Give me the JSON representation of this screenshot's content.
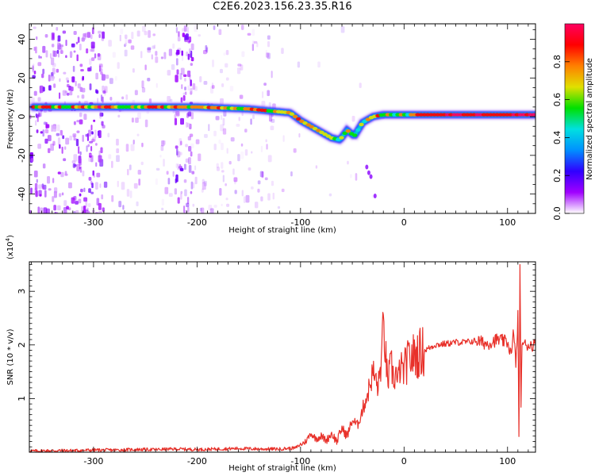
{
  "title": "C2E6.2023.156.23.35.R16",
  "chart_data": [
    {
      "type": "heatmap",
      "xlabel": "Height of straight line (km)",
      "ylabel": "Frequency (Hz)",
      "xlim": [
        -362,
        127
      ],
      "ylim": [
        -50,
        48
      ],
      "x_ticks": [
        -300,
        -200,
        -100,
        0,
        100
      ],
      "x_tick_labels": [
        "-300",
        "-200",
        "-100",
        "0",
        "100"
      ],
      "y_ticks": [
        -40,
        -20,
        0,
        20,
        40
      ],
      "y_tick_labels": [
        "-40",
        "-20",
        "0",
        "20",
        "40"
      ],
      "colorbar": {
        "label": "Normalized spectral amplitude",
        "range": [
          0.0,
          1.0
        ],
        "ticks": [
          0.0,
          0.2,
          0.4,
          0.6,
          0.8
        ],
        "tick_labels": [
          "0.0",
          "0.2",
          "0.4",
          "0.6",
          "0.8"
        ],
        "colormap": [
          "#ffffff",
          "#a000ff",
          "#3000ff",
          "#0090ff",
          "#00e0e0",
          "#00e000",
          "#e0e000",
          "#ff8000",
          "#ff0000",
          "#ff0060"
        ]
      },
      "ridge": {
        "x": [
          -358,
          -330,
          -300,
          -250,
          -200,
          -150,
          -130,
          -110,
          -100,
          -90,
          -80,
          -70,
          -62,
          -55,
          -48,
          -40,
          -30,
          -20,
          0,
          20,
          50,
          80,
          100,
          110,
          127
        ],
        "frequency": [
          5,
          5,
          5,
          5,
          5,
          4,
          3,
          2,
          -2,
          -5,
          -8,
          -11,
          -12,
          -7,
          -10,
          -3,
          0,
          1,
          1,
          1,
          1,
          1,
          1,
          1,
          1
        ]
      },
      "background_noise_x_ranges": [
        [
          -362,
          -290
        ],
        [
          -222,
          -205
        ]
      ],
      "grid": false
    },
    {
      "type": "line",
      "xlabel": "Height of straight line (km)",
      "ylabel": "SNR (10 * v/v)",
      "y_scale_label": "(x10^4)",
      "xlim": [
        -362,
        127
      ],
      "ylim": [
        0,
        3.55
      ],
      "x_ticks": [
        -300,
        -200,
        -100,
        0,
        100
      ],
      "x_tick_labels": [
        "-300",
        "-200",
        "-100",
        "0",
        "100"
      ],
      "y_ticks": [
        1,
        2,
        3
      ],
      "y_tick_labels": [
        "1",
        "2",
        "3"
      ],
      "series": [
        {
          "color": "#e8312a",
          "x": [
            -362,
            -340,
            -320,
            -300,
            -280,
            -260,
            -240,
            -220,
            -200,
            -180,
            -160,
            -140,
            -120,
            -105,
            -95,
            -90,
            -85,
            -80,
            -75,
            -70,
            -65,
            -60,
            -55,
            -50,
            -45,
            -40,
            -35,
            -30,
            -25,
            -22,
            -20,
            -18,
            -16,
            -14,
            -12,
            -10,
            -8,
            -6,
            -4,
            -2,
            0,
            5,
            10,
            15,
            20,
            25,
            30,
            40,
            50,
            60,
            70,
            80,
            90,
            100,
            104,
            106,
            108,
            110,
            111,
            112,
            113,
            114,
            116,
            120,
            127
          ],
          "y": [
            0.02,
            0.03,
            0.03,
            0.04,
            0.04,
            0.05,
            0.05,
            0.06,
            0.05,
            0.06,
            0.07,
            0.06,
            0.06,
            0.08,
            0.2,
            0.35,
            0.25,
            0.3,
            0.22,
            0.35,
            0.2,
            0.45,
            0.3,
            0.6,
            0.5,
            0.8,
            1.1,
            1.5,
            1.2,
            1.7,
            2.35,
            1.9,
            1.3,
            1.5,
            1.6,
            1.35,
            1.5,
            1.25,
            1.6,
            1.5,
            1.55,
            1.75,
            1.8,
            1.85,
            1.9,
            1.95,
            2.0,
            2.02,
            2.05,
            2.05,
            2.08,
            2.02,
            2.1,
            2.05,
            1.8,
            2.3,
            1.6,
            2.5,
            0.3,
            3.5,
            0.8,
            2.1,
            2.0,
            2.0,
            2.0
          ]
        }
      ],
      "grid": false
    }
  ]
}
